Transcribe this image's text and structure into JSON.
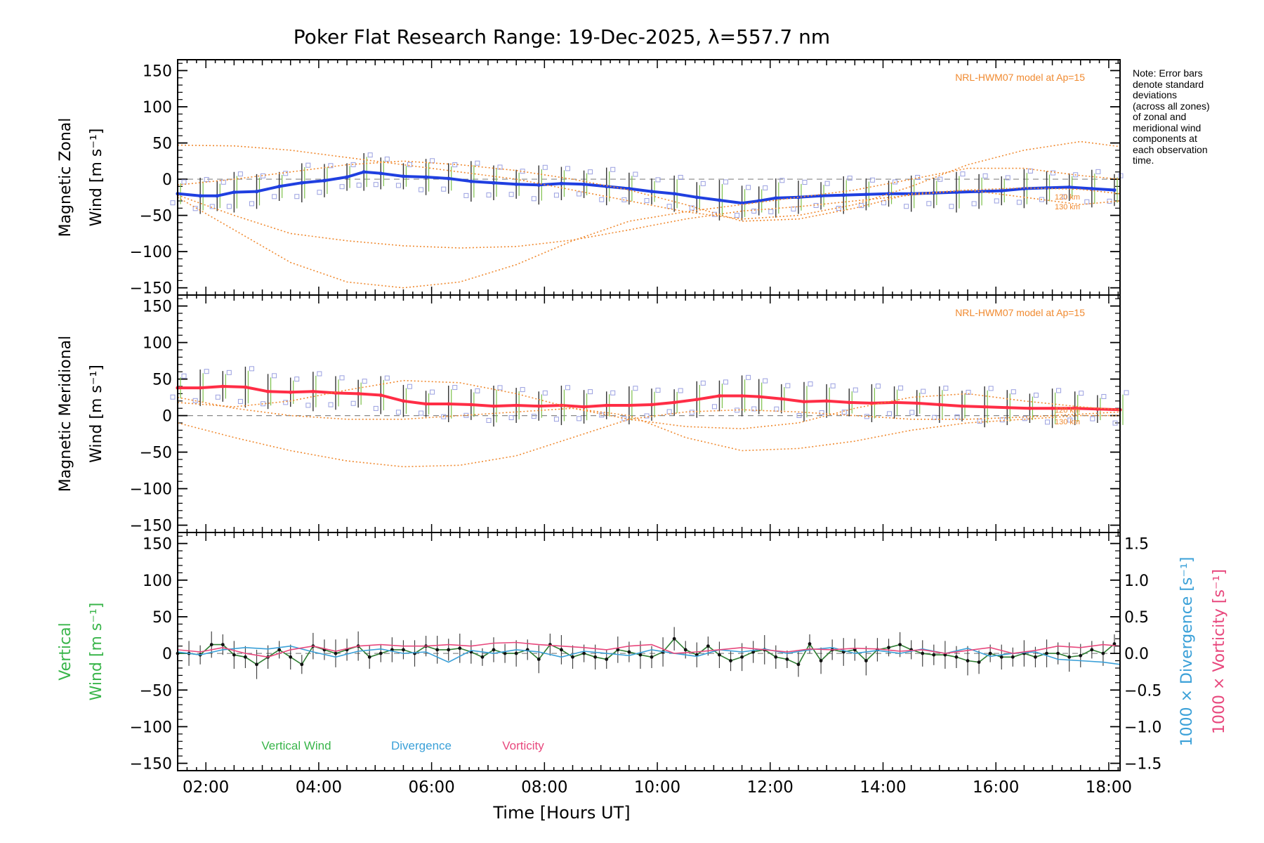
{
  "chart_data": {
    "type": "line",
    "title": "Poker Flat Research Range: 19-Dec-2025, λ=557.7 nm",
    "xlabel": "Time [Hours UT]",
    "xlim": [
      1.5,
      18.2
    ],
    "x_ticks": [
      2,
      4,
      6,
      8,
      10,
      12,
      14,
      16,
      18
    ],
    "x_tick_labels": [
      "02:00",
      "04:00",
      "06:00",
      "08:00",
      "10:00",
      "12:00",
      "14:00",
      "16:00",
      "18:00"
    ],
    "y_ticks": [
      -150,
      -100,
      -50,
      0,
      50,
      100,
      150
    ],
    "y_tick_labels": [
      "−150",
      "−100",
      "−50",
      "0",
      "50",
      "100",
      "150"
    ],
    "note_lines": [
      "Note: Error bars",
      "denote standard",
      "deviations",
      "(across all zones)",
      "of zonal and",
      "meridional wind",
      "components at",
      "each observation",
      "time."
    ],
    "panels": [
      {
        "id": "zonal",
        "ylabel_line1": "Magnetic Zonal",
        "ylabel_line2": "Wind [m s⁻¹]",
        "ylim": [
          -160,
          165
        ],
        "model_label": "NRL-HWM07 model at Ap=15",
        "alt_labels": [
          "120 km",
          "130 km"
        ],
        "series": [
          {
            "name": "Zonal wind",
            "color": "#1f3fe0",
            "x": [
              1.5,
              1.9,
              2.2,
              2.5,
              2.9,
              3.3,
              3.7,
              4.1,
              4.5,
              4.8,
              5.1,
              5.5,
              5.9,
              6.3,
              6.7,
              7.1,
              7.5,
              7.9,
              8.3,
              8.7,
              9.1,
              9.5,
              9.9,
              10.3,
              10.7,
              11.1,
              11.5,
              11.8,
              12.1,
              12.5,
              12.9,
              13.3,
              13.7,
              14.1,
              14.5,
              14.9,
              15.3,
              15.7,
              16.1,
              16.5,
              16.9,
              17.3,
              17.7,
              18.1
            ],
            "y": [
              -20,
              -23,
              -23,
              -18,
              -17,
              -10,
              -5,
              -2,
              3,
              10,
              8,
              4,
              3,
              1,
              -3,
              -5,
              -7,
              -8,
              -6,
              -7,
              -10,
              -13,
              -17,
              -20,
              -25,
              -29,
              -33,
              -30,
              -26,
              -25,
              -23,
              -22,
              -21,
              -20,
              -20,
              -19,
              -18,
              -17,
              -16,
              -13,
              -12,
              -11,
              -13,
              -15
            ]
          },
          {
            "name": "HWM07 120 km a",
            "color": "#f08a30",
            "x": [
              1.5,
              2.5,
              3.5,
              4.5,
              5.5,
              6.5,
              7.5,
              8.5,
              9.5,
              10.5,
              11.5,
              12.5,
              13.5,
              14.5,
              15.5,
              16.5,
              17.5,
              18.2
            ],
            "y": [
              -22,
              -50,
              -75,
              -85,
              -92,
              -95,
              -93,
              -84,
              -70,
              -55,
              -44,
              -38,
              -30,
              -22,
              -15,
              -12,
              -14,
              -20
            ]
          },
          {
            "name": "HWM07 130 km a",
            "color": "#f08a30",
            "x": [
              1.5,
              2.5,
              3.5,
              4.5,
              5.5,
              6.5,
              7.5,
              8.5,
              9.5,
              10.5,
              11.5,
              12.5,
              13.5,
              14.5,
              15.5,
              16.5,
              17.5,
              18.2
            ],
            "y": [
              -25,
              -70,
              -115,
              -142,
              -150,
              -142,
              -118,
              -85,
              -58,
              -45,
              -35,
              -25,
              -15,
              0,
              15,
              15,
              5,
              0
            ]
          },
          {
            "name": "HWM07 120 km b",
            "color": "#f08a30",
            "x": [
              1.5,
              2.5,
              3.5,
              4.5,
              5.5,
              6.5,
              7.5,
              8.5,
              9.5,
              10.5,
              11.5,
              12.5,
              13.5,
              14.5,
              15.5,
              16.5,
              17.5,
              18.2
            ],
            "y": [
              47,
              46,
              40,
              30,
              20,
              10,
              0,
              -15,
              -30,
              -45,
              -55,
              -50,
              -35,
              -10,
              20,
              40,
              52,
              45
            ]
          },
          {
            "name": "HWM07 130 km b",
            "color": "#f08a30",
            "x": [
              1.5,
              2.5,
              3.5,
              4.5,
              5.5,
              6.5,
              7.5,
              8.5,
              9.5,
              10.5,
              11.5,
              12.5,
              13.5,
              14.5,
              15.5,
              16.5,
              17.5,
              18.2
            ],
            "y": [
              -8,
              0,
              10,
              20,
              25,
              20,
              12,
              0,
              -15,
              -35,
              -58,
              -55,
              -40,
              -20,
              -15,
              -25,
              -35,
              -30
            ]
          }
        ]
      },
      {
        "id": "meridional",
        "ylabel_line1": "Magnetic Meridional",
        "ylabel_line2": "Wind [m s⁻¹]",
        "ylim": [
          -160,
          165
        ],
        "model_label": "NRL-HWM07 model at Ap=15",
        "alt_labels": [
          "120 km",
          "130 km"
        ],
        "series": [
          {
            "name": "Meridional wind",
            "color": "#ff2d45",
            "x": [
              1.5,
              1.9,
              2.3,
              2.7,
              3.1,
              3.5,
              3.9,
              4.3,
              4.7,
              5.1,
              5.5,
              5.9,
              6.3,
              6.7,
              7.1,
              7.5,
              7.9,
              8.3,
              8.7,
              9.1,
              9.5,
              9.9,
              10.3,
              10.7,
              11.1,
              11.5,
              11.8,
              12.2,
              12.6,
              13.0,
              13.4,
              13.8,
              14.2,
              14.6,
              15.0,
              15.4,
              15.8,
              16.2,
              16.6,
              17.0,
              17.4,
              17.8,
              18.2
            ],
            "y": [
              38,
              38,
              40,
              39,
              33,
              32,
              33,
              31,
              30,
              28,
              20,
              16,
              16,
              15,
              13,
              14,
              13,
              14,
              12,
              14,
              14,
              15,
              18,
              22,
              27,
              27,
              26,
              23,
              19,
              20,
              18,
              17,
              18,
              17,
              15,
              13,
              12,
              11,
              10,
              10,
              10,
              9,
              8
            ]
          },
          {
            "name": "HWM07 a",
            "color": "#f08a30",
            "x": [
              1.5,
              2.5,
              3.5,
              4.5,
              5.5,
              6.5,
              7.5,
              8.5,
              9.5,
              10.5,
              11.5,
              12.5,
              13.5,
              14.5,
              15.5,
              16.5,
              17.5,
              18.2
            ],
            "y": [
              -10,
              -30,
              -48,
              -62,
              -70,
              -68,
              -55,
              -30,
              -5,
              5,
              8,
              5,
              0,
              -5,
              -5,
              -2,
              2,
              5
            ]
          },
          {
            "name": "HWM07 b",
            "color": "#f08a30",
            "x": [
              1.5,
              2.5,
              3.5,
              4.5,
              5.5,
              6.5,
              7.5,
              8.5,
              9.5,
              10.5,
              11.5,
              12.5,
              13.5,
              14.5,
              15.5,
              16.5,
              17.5,
              18.2
            ],
            "y": [
              25,
              10,
              0,
              -5,
              -5,
              0,
              5,
              10,
              0,
              -30,
              -48,
              -45,
              -35,
              -20,
              -10,
              -5,
              0,
              0
            ]
          },
          {
            "name": "HWM07 c",
            "color": "#f08a30",
            "x": [
              1.5,
              2.5,
              3.5,
              4.5,
              5.5,
              6.5,
              7.5,
              8.5,
              9.5,
              10.5,
              11.5,
              12.5,
              13.5,
              14.5,
              15.5,
              16.5,
              17.5,
              18.2
            ],
            "y": [
              18,
              12,
              20,
              35,
              48,
              45,
              30,
              10,
              -5,
              -15,
              -18,
              -10,
              10,
              25,
              30,
              20,
              12,
              8
            ]
          }
        ]
      },
      {
        "id": "vertical",
        "ylabel_line1": "Vertical",
        "ylabel_line2": "Wind [m s⁻¹]",
        "ylabel_color": "#39b54a",
        "ylim": [
          -160,
          165
        ],
        "y2lim": [
          -1.6,
          1.65
        ],
        "y2_ticks": [
          -1.5,
          -1.0,
          -0.5,
          0.0,
          0.5,
          1.0,
          1.5
        ],
        "y2_tick_labels": [
          "−1.5",
          "−1.0",
          "−0.5",
          "0.0",
          "0.5",
          "1.0",
          "1.5"
        ],
        "y2label_div": "1000 × Divergence [s⁻¹]",
        "y2label_vort": "1000 × Vorticity [s⁻¹]",
        "legend": [
          "Vertical Wind",
          "Divergence",
          "Vorticity"
        ],
        "series": [
          {
            "name": "Vertical Wind",
            "color": "#2e7d32",
            "x": [
              1.5,
              1.7,
              1.9,
              2.1,
              2.3,
              2.5,
              2.7,
              2.9,
              3.1,
              3.3,
              3.5,
              3.7,
              3.9,
              4.1,
              4.3,
              4.5,
              4.7,
              4.9,
              5.1,
              5.3,
              5.5,
              5.7,
              5.9,
              6.1,
              6.3,
              6.5,
              6.7,
              6.9,
              7.1,
              7.3,
              7.5,
              7.7,
              7.9,
              8.1,
              8.3,
              8.5,
              8.7,
              8.9,
              9.1,
              9.3,
              9.5,
              9.7,
              9.9,
              10.1,
              10.3,
              10.5,
              10.7,
              10.9,
              11.1,
              11.3,
              11.5,
              11.7,
              11.9,
              12.1,
              12.3,
              12.5,
              12.7,
              12.9,
              13.1,
              13.3,
              13.5,
              13.7,
              13.9,
              14.1,
              14.3,
              14.5,
              14.7,
              14.9,
              15.1,
              15.3,
              15.5,
              15.7,
              15.9,
              16.1,
              16.3,
              16.5,
              16.7,
              16.9,
              17.1,
              17.3,
              17.5,
              17.7,
              17.9,
              18.1
            ],
            "y": [
              0,
              0,
              -2,
              12,
              12,
              -2,
              -5,
              -15,
              -5,
              5,
              -5,
              -15,
              10,
              5,
              0,
              5,
              10,
              -5,
              0,
              5,
              5,
              0,
              10,
              5,
              5,
              7,
              2,
              -5,
              5,
              0,
              0,
              5,
              -8,
              12,
              5,
              -5,
              0,
              -5,
              -8,
              5,
              2,
              -2,
              -5,
              2,
              20,
              5,
              -2,
              10,
              -2,
              -10,
              -5,
              2,
              5,
              -5,
              -8,
              -15,
              13,
              -10,
              5,
              2,
              5,
              -10,
              5,
              8,
              12,
              5,
              0,
              -2,
              -2,
              -5,
              -10,
              -12,
              0,
              -5,
              -5,
              0,
              -5,
              0,
              0,
              -5,
              -3,
              5,
              0,
              13
            ]
          },
          {
            "name": "Divergence",
            "color": "#3aa0d8",
            "x": [
              1.5,
              1.9,
              2.3,
              2.7,
              3.1,
              3.5,
              3.9,
              4.3,
              4.7,
              5.1,
              5.5,
              5.9,
              6.3,
              6.7,
              7.1,
              7.5,
              7.9,
              8.3,
              8.7,
              9.1,
              9.5,
              9.9,
              10.3,
              10.7,
              11.1,
              11.5,
              11.9,
              12.3,
              12.7,
              13.1,
              13.5,
              13.9,
              14.3,
              14.7,
              15.1,
              15.5,
              15.9,
              16.3,
              16.7,
              17.1,
              17.5,
              17.9,
              18.2
            ],
            "y": [
              0.02,
              -0.02,
              0.05,
              0.08,
              0.06,
              0.1,
              0.02,
              -0.05,
              0.03,
              0.06,
              0.0,
              0.02,
              -0.12,
              0.04,
              0.0,
              0.05,
              0.02,
              -0.05,
              0.03,
              0.0,
              -0.03,
              0.05,
              0.0,
              -0.04,
              0.05,
              0.02,
              0.06,
              0.0,
              0.05,
              0.08,
              0.0,
              0.04,
              0.0,
              0.06,
              0.0,
              0.07,
              -0.04,
              0.0,
              0.02,
              -0.08,
              -0.1,
              -0.12,
              -0.15
            ]
          },
          {
            "name": "Vorticity",
            "color": "#e8487d",
            "x": [
              1.5,
              1.9,
              2.3,
              2.7,
              3.1,
              3.5,
              3.9,
              4.3,
              4.7,
              5.1,
              5.5,
              5.9,
              6.3,
              6.7,
              7.1,
              7.5,
              7.9,
              8.3,
              8.7,
              9.1,
              9.5,
              9.9,
              10.3,
              10.7,
              11.1,
              11.5,
              11.9,
              12.3,
              12.7,
              13.1,
              13.5,
              13.9,
              14.3,
              14.7,
              15.1,
              15.5,
              15.9,
              16.3,
              16.7,
              17.1,
              17.5,
              17.9,
              18.2
            ],
            "y": [
              0.05,
              0.02,
              0.08,
              0.0,
              -0.05,
              0.05,
              0.1,
              0.03,
              0.1,
              0.12,
              0.1,
              0.1,
              0.12,
              0.1,
              0.14,
              0.15,
              0.12,
              0.1,
              0.08,
              0.05,
              0.1,
              0.12,
              0.0,
              0.02,
              0.05,
              0.08,
              0.05,
              0.02,
              0.06,
              0.05,
              0.07,
              0.06,
              0.03,
              0.05,
              0.0,
              0.04,
              0.08,
              0.0,
              0.04,
              0.1,
              0.08,
              0.12,
              0.1
            ]
          }
        ]
      }
    ]
  }
}
